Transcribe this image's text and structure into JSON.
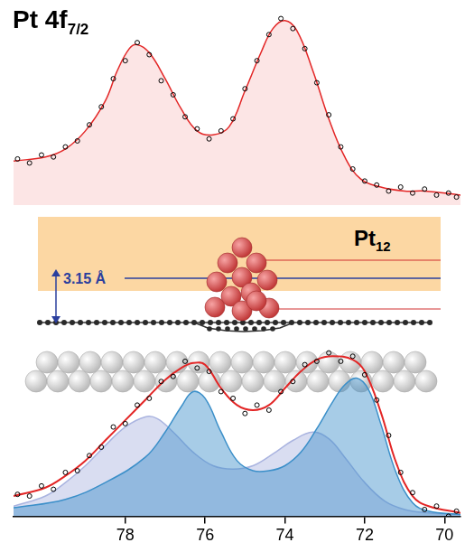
{
  "title": {
    "text": "Pt 4f",
    "subscript": "7/2"
  },
  "diagram": {
    "label": {
      "text": "Pt",
      "subscript": "12"
    },
    "height_label": "3.15 Å"
  },
  "chart_data": [
    {
      "type": "line",
      "xlim": [
        80.8,
        69.6
      ],
      "ylim": [
        0,
        1
      ],
      "tick_labels": false,
      "series": [
        {
          "type": "scatter",
          "color": "#000000",
          "marker": "circle",
          "x": [
            80.7,
            80.4,
            80.1,
            79.8,
            79.5,
            79.2,
            78.9,
            78.6,
            78.3,
            78.0,
            77.7,
            77.4,
            77.1,
            76.8,
            76.5,
            76.2,
            75.9,
            75.6,
            75.3,
            75.0,
            74.7,
            74.4,
            74.1,
            73.8,
            73.5,
            73.2,
            72.9,
            72.6,
            72.3,
            72.0,
            71.7,
            71.4,
            71.1,
            70.8,
            70.5,
            70.2,
            69.9,
            69.7
          ],
          "values": [
            0.23,
            0.21,
            0.25,
            0.24,
            0.29,
            0.32,
            0.4,
            0.49,
            0.63,
            0.72,
            0.81,
            0.75,
            0.62,
            0.55,
            0.44,
            0.38,
            0.33,
            0.37,
            0.43,
            0.58,
            0.72,
            0.85,
            0.93,
            0.88,
            0.78,
            0.61,
            0.45,
            0.29,
            0.18,
            0.12,
            0.1,
            0.07,
            0.09,
            0.06,
            0.08,
            0.05,
            0.06,
            0.04
          ]
        },
        {
          "type": "area",
          "color": "#e32626",
          "line_style": "solid",
          "x": [
            80.8,
            80.0,
            79.5,
            79.0,
            78.5,
            78.2,
            77.9,
            77.7,
            77.4,
            77.0,
            76.6,
            76.2,
            75.8,
            75.4,
            75.0,
            74.6,
            74.3,
            74.0,
            73.7,
            73.3,
            72.9,
            72.5,
            72.1,
            71.6,
            71.0,
            70.5,
            69.6
          ],
          "values": [
            0.22,
            0.24,
            0.28,
            0.37,
            0.52,
            0.67,
            0.78,
            0.8,
            0.76,
            0.63,
            0.48,
            0.37,
            0.35,
            0.39,
            0.57,
            0.76,
            0.88,
            0.92,
            0.87,
            0.67,
            0.43,
            0.24,
            0.13,
            0.09,
            0.07,
            0.07,
            0.05
          ]
        }
      ]
    },
    {
      "type": "line",
      "xlim": [
        80.8,
        69.6
      ],
      "ylim": [
        0,
        1
      ],
      "xticks": [
        78,
        76,
        74,
        72,
        70
      ],
      "tick_labels": "x",
      "series": [
        {
          "type": "scatter",
          "color": "#000000",
          "marker": "circle",
          "x": [
            80.7,
            80.4,
            80.1,
            79.8,
            79.5,
            79.2,
            78.9,
            78.6,
            78.3,
            78.0,
            77.7,
            77.4,
            77.1,
            76.8,
            76.5,
            76.2,
            75.9,
            75.6,
            75.3,
            75.0,
            74.7,
            74.4,
            74.1,
            73.8,
            73.5,
            73.2,
            72.9,
            72.6,
            72.3,
            72.0,
            71.7,
            71.4,
            71.1,
            70.8,
            70.5,
            70.2,
            69.9,
            69.7
          ],
          "values": [
            0.13,
            0.12,
            0.18,
            0.16,
            0.26,
            0.27,
            0.36,
            0.41,
            0.53,
            0.55,
            0.66,
            0.7,
            0.8,
            0.83,
            0.92,
            0.88,
            0.86,
            0.74,
            0.7,
            0.61,
            0.66,
            0.63,
            0.74,
            0.8,
            0.9,
            0.92,
            0.97,
            0.92,
            0.95,
            0.84,
            0.69,
            0.48,
            0.26,
            0.14,
            0.04,
            0.06,
            0.0,
            0.03
          ]
        },
        {
          "type": "line",
          "color": "#e32626",
          "line_style": "solid",
          "x": [
            80.8,
            80.0,
            79.5,
            79.0,
            78.5,
            78.0,
            77.5,
            77.0,
            76.6,
            76.3,
            76.0,
            75.6,
            75.2,
            74.8,
            74.4,
            74.0,
            73.6,
            73.2,
            72.8,
            72.3,
            72.0,
            71.6,
            71.2,
            70.8,
            70.4,
            69.6
          ],
          "values": [
            0.12,
            0.17,
            0.24,
            0.33,
            0.45,
            0.57,
            0.69,
            0.81,
            0.88,
            0.91,
            0.9,
            0.76,
            0.66,
            0.63,
            0.66,
            0.76,
            0.86,
            0.93,
            0.95,
            0.93,
            0.86,
            0.62,
            0.31,
            0.12,
            0.06,
            0.02
          ]
        },
        {
          "type": "area",
          "color": "#3b8fc9",
          "line_style": "solid",
          "x": [
            80.8,
            79.5,
            78.5,
            77.5,
            77.0,
            76.6,
            76.3,
            76.0,
            75.6,
            75.2,
            74.8,
            74.4,
            74.0,
            73.6,
            73.2,
            72.8,
            72.5,
            72.2,
            71.9,
            71.6,
            71.2,
            70.8,
            70.4,
            69.6
          ],
          "values": [
            0.05,
            0.1,
            0.2,
            0.35,
            0.5,
            0.65,
            0.74,
            0.7,
            0.5,
            0.33,
            0.27,
            0.27,
            0.3,
            0.38,
            0.52,
            0.68,
            0.78,
            0.82,
            0.75,
            0.55,
            0.25,
            0.08,
            0.03,
            0.01
          ]
        },
        {
          "type": "area",
          "color": "#aab4e0",
          "line_style": "solid",
          "x": [
            80.8,
            80.0,
            79.5,
            79.0,
            78.5,
            78.0,
            77.5,
            77.2,
            76.8,
            76.3,
            75.8,
            75.3,
            74.8,
            74.3,
            73.8,
            73.3,
            72.9,
            72.5,
            72.0,
            71.5,
            71.0,
            70.4,
            69.6
          ],
          "values": [
            0.06,
            0.12,
            0.2,
            0.3,
            0.42,
            0.53,
            0.59,
            0.58,
            0.5,
            0.38,
            0.3,
            0.28,
            0.3,
            0.37,
            0.45,
            0.5,
            0.46,
            0.35,
            0.2,
            0.09,
            0.04,
            0.02,
            0.01
          ]
        }
      ]
    }
  ]
}
